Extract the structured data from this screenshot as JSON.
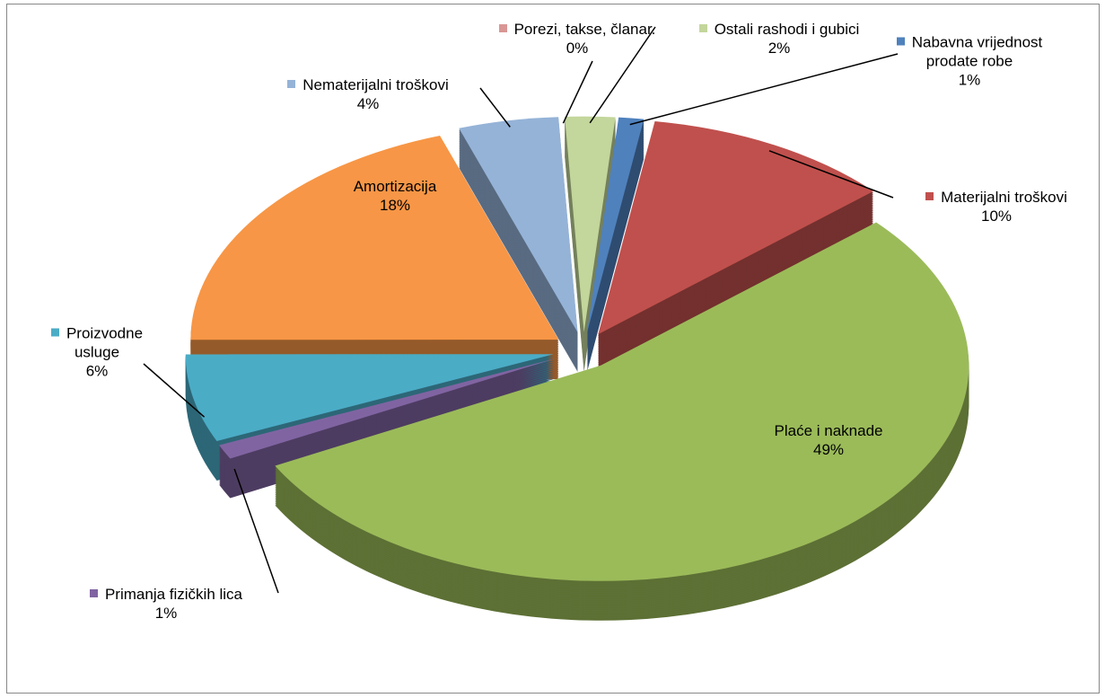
{
  "chart_data": {
    "type": "pie",
    "categories": [
      "Porezi, takse, članar.",
      "Ostali rashodi i gubici",
      "Nabavna vrijednost prodate robe",
      "Materijalni troškovi",
      "Plaće i naknade",
      "Primanja fizičkih lica",
      "Proizvodne usluge",
      "Amortizacija",
      "Nematerijalni troškovi"
    ],
    "values": [
      0,
      2,
      1,
      10,
      49,
      1,
      6,
      18,
      4
    ],
    "value_labels": [
      "0%",
      "2%",
      "1%",
      "10%",
      "49%",
      "1%",
      "6%",
      "18%",
      "4%"
    ],
    "colors": [
      "#d99694",
      "#c3d69b",
      "#4f81bd",
      "#c0504d",
      "#9bbb59",
      "#8064a2",
      "#4bacc6",
      "#f79646",
      "#95b3d7"
    ]
  }
}
